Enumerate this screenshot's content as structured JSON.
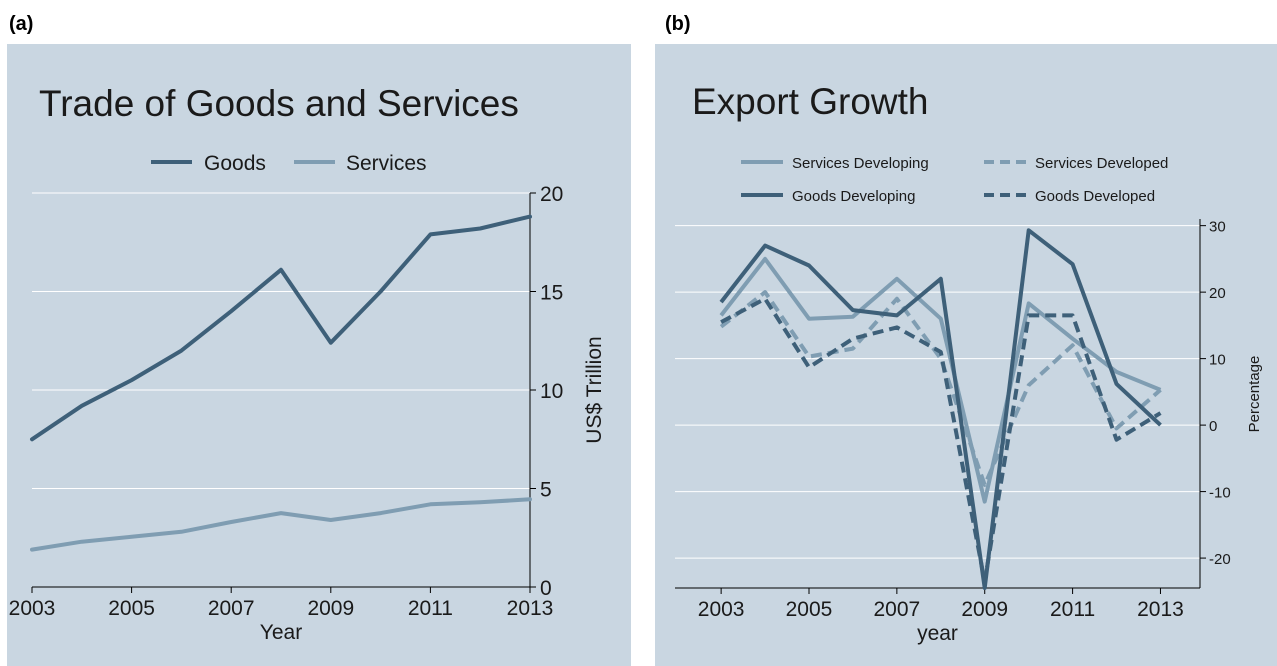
{
  "chart_data": [
    {
      "panel_label": "(a)",
      "type": "line",
      "title": "Trade of Goods and Services",
      "xlabel": "Year",
      "ylabel": "US$ Trillion",
      "x": [
        2003,
        2004,
        2005,
        2006,
        2007,
        2008,
        2009,
        2010,
        2011,
        2012,
        2013
      ],
      "xticks": [
        "2003",
        "2005",
        "2007",
        "2009",
        "2011",
        "2013"
      ],
      "xlim": [
        2003,
        2013
      ],
      "yticks": [
        "0",
        "5",
        "10",
        "15",
        "20"
      ],
      "ylim": [
        0,
        20
      ],
      "grid": true,
      "legend": "top",
      "colors": {
        "panel_bg": "#c9d6e1",
        "grid": "#ffffff",
        "Goods": "#3e6079",
        "Services": "#7f9db2"
      },
      "series": [
        {
          "name": "Goods",
          "values": [
            7.5,
            9.2,
            10.5,
            12.0,
            14.0,
            16.1,
            12.4,
            15.0,
            17.9,
            18.2,
            18.8
          ]
        },
        {
          "name": "Services",
          "values": [
            1.9,
            2.3,
            2.55,
            2.8,
            3.3,
            3.75,
            3.4,
            3.75,
            4.2,
            4.3,
            4.45
          ]
        }
      ]
    },
    {
      "panel_label": "(b)",
      "type": "line",
      "title": "Export Growth",
      "xlabel": "year",
      "ylabel": "Percentage",
      "x": [
        2003,
        2004,
        2005,
        2006,
        2007,
        2008,
        2009,
        2010,
        2011,
        2012,
        2013
      ],
      "xticks": [
        "2003",
        "2005",
        "2007",
        "2009",
        "2011",
        "2013"
      ],
      "xlim": [
        2001.95,
        2013.9
      ],
      "yticks": [
        "-20",
        "-10",
        "0",
        "10",
        "20",
        "30"
      ],
      "ylim": [
        -24.5,
        31
      ],
      "grid": true,
      "legend": "top",
      "colors": {
        "panel_bg": "#c9d6e1",
        "grid": "#ffffff"
      },
      "series": [
        {
          "name": "Services Developing",
          "color": "#7f9db2",
          "dash": "solid",
          "values": [
            16.5,
            25.0,
            16.0,
            16.3,
            22.0,
            16.0,
            -11.5,
            18.3,
            13.0,
            8.0,
            5.3
          ]
        },
        {
          "name": "Services Developed",
          "color": "#7f9db2",
          "dash": "dashed",
          "values": [
            14.8,
            20.0,
            10.3,
            11.5,
            19.0,
            10.0,
            -9.0,
            6.0,
            12.0,
            -0.5,
            5.3
          ]
        },
        {
          "name": "Goods Developing",
          "color": "#3e6079",
          "dash": "solid",
          "values": [
            18.5,
            27.0,
            24.0,
            17.3,
            16.5,
            22.0,
            -24.5,
            29.3,
            24.2,
            6.2,
            0.0
          ]
        },
        {
          "name": "Goods Developed",
          "color": "#3e6079",
          "dash": "dashed",
          "values": [
            15.5,
            19.0,
            8.7,
            13.0,
            14.7,
            11.0,
            -23.5,
            16.5,
            16.5,
            -2.2,
            1.8
          ]
        }
      ]
    }
  ]
}
